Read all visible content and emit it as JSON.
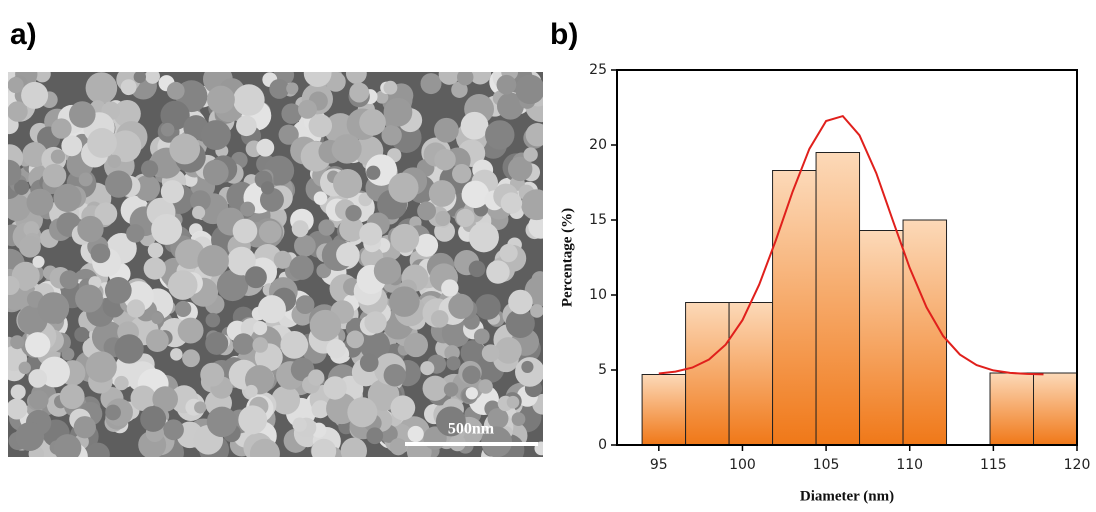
{
  "panel_labels": [
    "a)",
    "b)"
  ],
  "image": {
    "scale_bar": "500nm"
  },
  "chart_data": {
    "type": "histogram",
    "xlabel": "Diameter (nm)",
    "ylabel": "Percentage (%)",
    "bins": [
      94,
      96.6,
      99.2,
      101.8,
      104.4,
      107,
      109.6,
      112.2,
      114.8,
      117.4,
      120
    ],
    "values": [
      4.7,
      9.5,
      9.5,
      18.3,
      19.5,
      14.3,
      15,
      0,
      4.8,
      4.8
    ],
    "color_top": "#fcd9b8",
    "color_bottom": "#f07818",
    "fit": {
      "color": "#e0201c",
      "x": [
        95,
        96,
        97,
        98,
        99,
        100,
        101,
        102,
        103,
        104,
        105,
        106,
        107,
        108,
        109,
        110,
        111,
        112,
        113,
        114,
        115,
        116,
        117,
        118
      ],
      "values": [
        4.77,
        4.89,
        5.16,
        5.7,
        6.69,
        8.33,
        10.69,
        13.66,
        16.89,
        19.75,
        21.6,
        21.93,
        20.65,
        18.12,
        14.94,
        11.81,
        9.18,
        7.26,
        6.03,
        5.33,
        4.97,
        4.81,
        4.74,
        4.71
      ]
    },
    "xlim": [
      92.5,
      120
    ],
    "xticks": [
      95,
      100,
      105,
      110,
      115,
      120
    ],
    "ylim": [
      0,
      25
    ],
    "yticks": [
      0,
      5,
      10,
      15,
      20,
      25
    ]
  }
}
